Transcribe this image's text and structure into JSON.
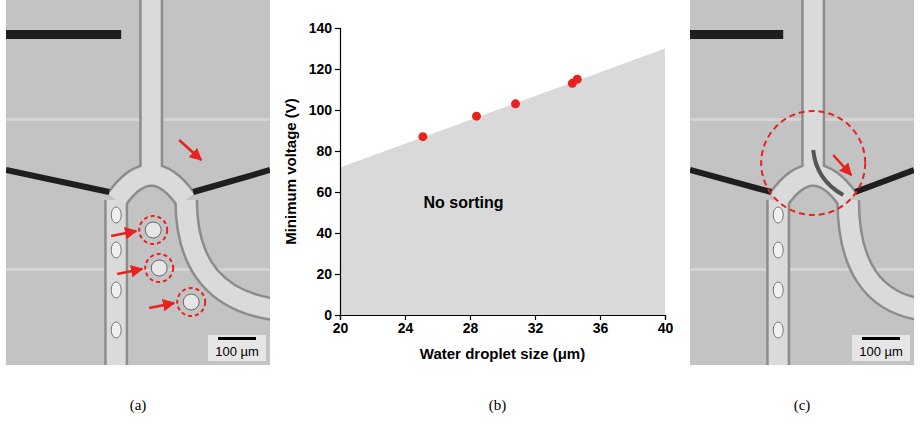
{
  "chart_data": {
    "type": "scatter",
    "x_label": "Water droplet size (μm)",
    "y_label": "Minimum voltage (V)",
    "x": [
      25.1,
      28.4,
      30.8,
      34.3,
      34.6
    ],
    "values": [
      87,
      97,
      103,
      113,
      115
    ],
    "color": "#e8221f",
    "marker": "circle",
    "xlim": [
      20,
      40
    ],
    "xticks": [
      20,
      24,
      28,
      32,
      36,
      40
    ],
    "ylim": [
      0,
      140
    ],
    "yticks": [
      0,
      20,
      40,
      60,
      80,
      100,
      120,
      140
    ],
    "grid": false,
    "region": {
      "x": [
        20,
        40
      ],
      "values": [
        72,
        130
      ],
      "color": "#d9d9d9"
    },
    "annotations": [
      {
        "text": "No sorting",
        "x": 27.6,
        "y": 52
      }
    ]
  },
  "figure": {
    "panel_labels": [
      "(a)",
      "(b)",
      "(c)"
    ],
    "scale_bars": [
      "100 µm",
      "100 µm"
    ]
  }
}
